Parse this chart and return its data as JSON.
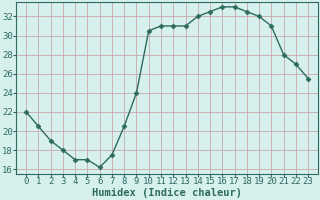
{
  "xlabel": "Humidex (Indice chaleur)",
  "x": [
    0,
    1,
    2,
    3,
    4,
    5,
    6,
    7,
    8,
    9,
    10,
    11,
    12,
    13,
    14,
    15,
    16,
    17,
    18,
    19,
    20,
    21,
    22,
    23
  ],
  "y": [
    22,
    20.5,
    19,
    18,
    17,
    17,
    16.2,
    17.5,
    20.5,
    24,
    30.5,
    31,
    31,
    31,
    32,
    32.5,
    33,
    33,
    32.5,
    32,
    31,
    28,
    27,
    25.5
  ],
  "line_color": "#2e6b5e",
  "marker": "D",
  "marker_size": 2.5,
  "bg_color": "#d6f0ee",
  "grid_color": "#c8a8a8",
  "ylim": [
    15.5,
    33.5
  ],
  "yticks": [
    16,
    18,
    20,
    22,
    24,
    26,
    28,
    30,
    32
  ],
  "xticks": [
    0,
    1,
    2,
    3,
    4,
    5,
    6,
    7,
    8,
    9,
    10,
    11,
    12,
    13,
    14,
    15,
    16,
    17,
    18,
    19,
    20,
    21,
    22,
    23
  ],
  "tick_fontsize": 6.5,
  "xlabel_fontsize": 7.5,
  "line_width": 1.0,
  "tick_color": "#2e6b5e",
  "xlabel_color": "#2e6b5e"
}
